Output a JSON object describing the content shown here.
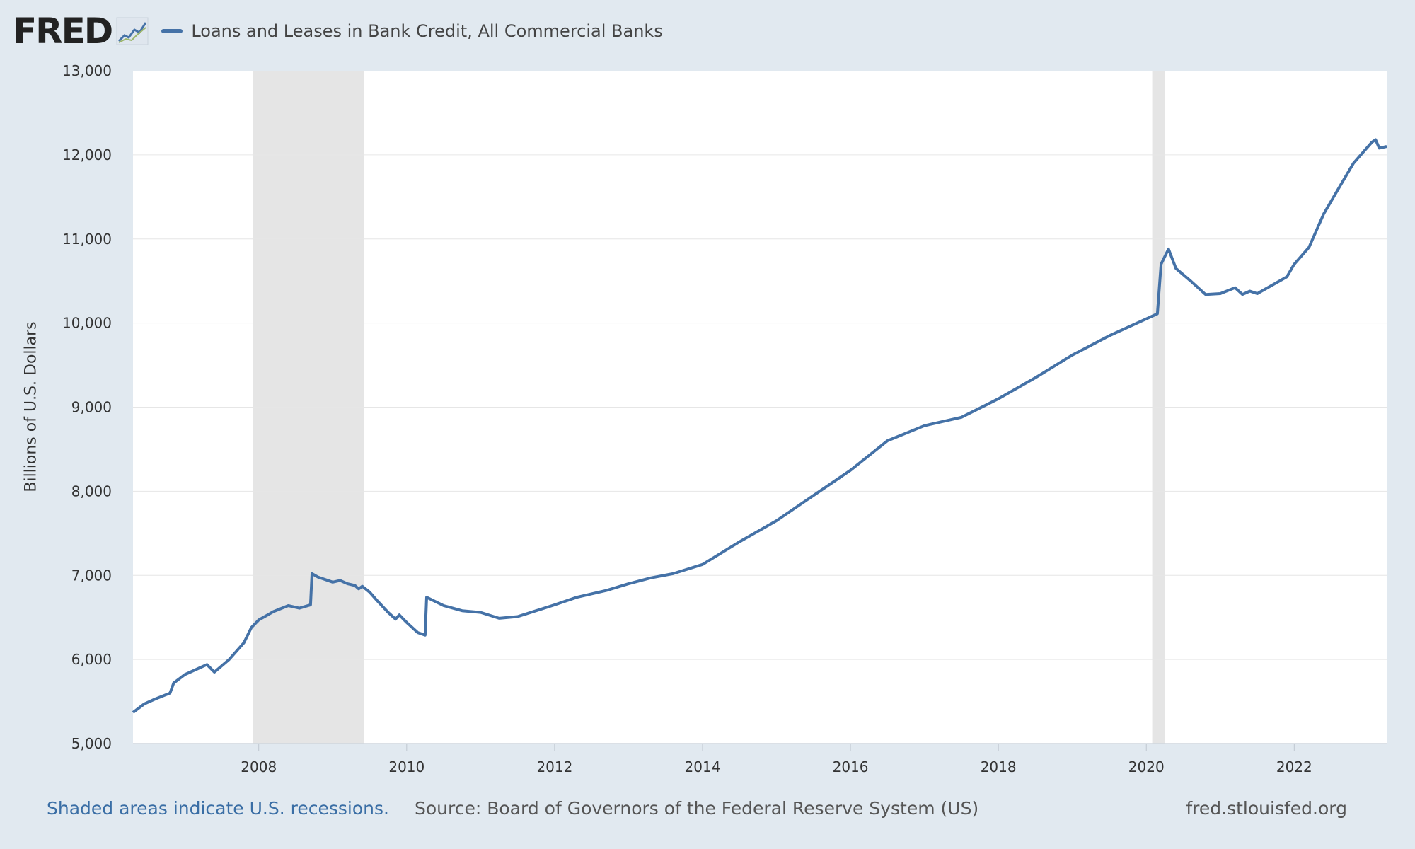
{
  "header": {
    "logo": "FRED",
    "series_label": "Loans and Leases in Bank Credit, All Commercial Banks"
  },
  "colors": {
    "line": "#4572a7",
    "recession": "#e5e5e5",
    "background": "#e1e9f0",
    "plot": "#ffffff"
  },
  "footer": {
    "note": "Shaded areas indicate U.S. recessions.",
    "source": "Source: Board of Governors of the Federal Reserve System (US)",
    "site": "fred.stlouisfed.org"
  },
  "chart_data": {
    "type": "line",
    "title": "Loans and Leases in Bank Credit, All Commercial Banks",
    "ylabel": "Billions of U.S. Dollars",
    "xlabel": "",
    "xlim": [
      2006.3,
      2023.25
    ],
    "ylim": [
      5000,
      13000
    ],
    "yticks": [
      "5,000",
      "6,000",
      "7,000",
      "8,000",
      "9,000",
      "10,000",
      "11,000",
      "12,000",
      "13,000"
    ],
    "ytick_values": [
      5000,
      6000,
      7000,
      8000,
      9000,
      10000,
      11000,
      12000,
      13000
    ],
    "xticks": [
      "2008",
      "2010",
      "2012",
      "2014",
      "2016",
      "2018",
      "2020",
      "2022"
    ],
    "xtick_values": [
      2008,
      2010,
      2012,
      2014,
      2016,
      2018,
      2020,
      2022
    ],
    "grid": true,
    "recessions": [
      [
        2007.92,
        2009.42
      ],
      [
        2020.08,
        2020.25
      ]
    ],
    "series": [
      {
        "x": [
          2006.3,
          2006.45,
          2006.6,
          2006.8,
          2006.85,
          2007.0,
          2007.2,
          2007.3,
          2007.4,
          2007.6,
          2007.8,
          2007.9,
          2008.0,
          2008.2,
          2008.4,
          2008.55,
          2008.7,
          2008.72,
          2008.8,
          2009.0,
          2009.1,
          2009.2,
          2009.3,
          2009.35,
          2009.4,
          2009.5,
          2009.6,
          2009.75,
          2009.85,
          2009.9,
          2010.0,
          2010.15,
          2010.25,
          2010.27,
          2010.5,
          2010.75,
          2011.0,
          2011.25,
          2011.5,
          2011.75,
          2012.0,
          2012.3,
          2012.7,
          2013.0,
          2013.3,
          2013.6,
          2014.0,
          2014.5,
          2015.0,
          2015.5,
          2016.0,
          2016.5,
          2017.0,
          2017.5,
          2018.0,
          2018.5,
          2019.0,
          2019.5,
          2020.0,
          2020.15,
          2020.2,
          2020.3,
          2020.4,
          2020.6,
          2020.8,
          2021.0,
          2021.2,
          2021.3,
          2021.4,
          2021.5,
          2021.7,
          2021.9,
          2022.0,
          2022.2,
          2022.4,
          2022.6,
          2022.8,
          2022.95,
          2023.05,
          2023.1,
          2023.15,
          2023.25
        ],
        "y": [
          5370,
          5470,
          5530,
          5600,
          5720,
          5820,
          5900,
          5940,
          5850,
          6000,
          6200,
          6380,
          6470,
          6570,
          6640,
          6610,
          6650,
          7020,
          6980,
          6920,
          6940,
          6900,
          6880,
          6840,
          6870,
          6800,
          6700,
          6560,
          6480,
          6530,
          6440,
          6320,
          6290,
          6740,
          6640,
          6580,
          6560,
          6490,
          6510,
          6580,
          6650,
          6740,
          6820,
          6900,
          6970,
          7020,
          7130,
          7400,
          7650,
          7950,
          8250,
          8600,
          8780,
          8880,
          9100,
          9350,
          9620,
          9850,
          10050,
          10110,
          10700,
          10880,
          10650,
          10500,
          10340,
          10350,
          10420,
          10340,
          10380,
          10350,
          10450,
          10550,
          10700,
          10900,
          11300,
          11600,
          11900,
          12050,
          12150,
          12180,
          12080,
          12100
        ]
      }
    ]
  }
}
